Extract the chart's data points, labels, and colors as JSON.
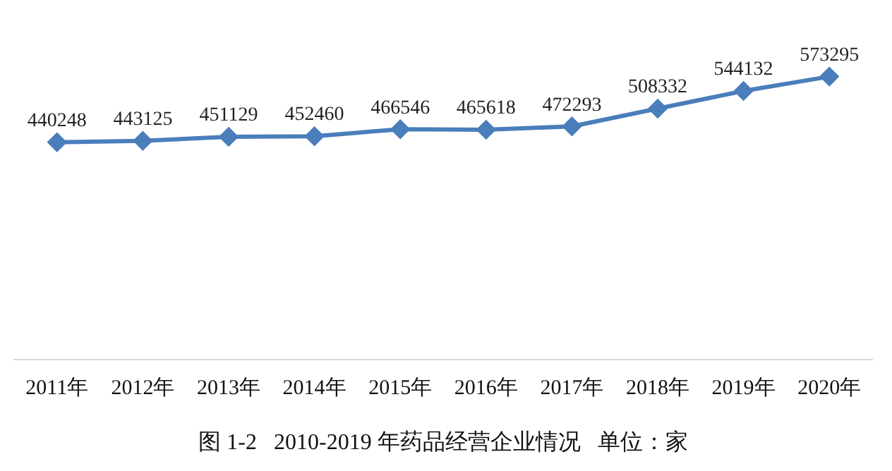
{
  "chart_data": {
    "type": "line",
    "title": "图 1-2   2010-2019 年药品经营企业情况   单位：家",
    "categories": [
      "2011年",
      "2012年",
      "2013年",
      "2014年",
      "2015年",
      "2016年",
      "2017年",
      "2018年",
      "2019年",
      "2020年"
    ],
    "series": [
      {
        "color": "#4a7ebb",
        "values": [
          440248,
          443125,
          451129,
          452460,
          466546,
          465618,
          472293,
          508332,
          544132,
          573295
        ]
      }
    ],
    "data_labels": true,
    "grid": false,
    "legend": false,
    "marker": "diamond",
    "line_style": "solid",
    "tick_labels": "x"
  }
}
